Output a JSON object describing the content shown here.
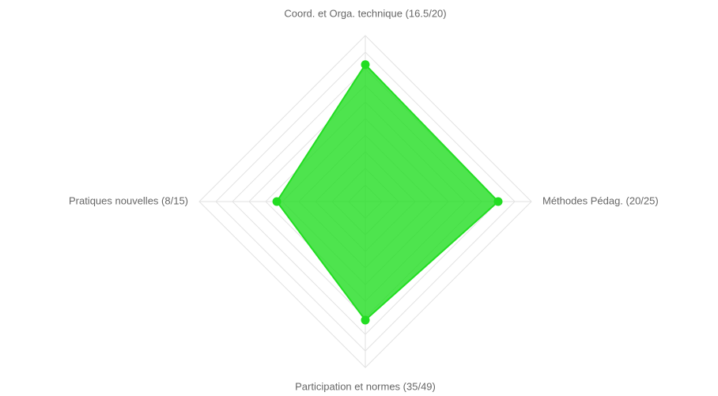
{
  "chart_data": {
    "type": "radar",
    "categories": [
      "Coord. et Orga. technique (16.5/20)",
      "Méthodes Pédag. (20/25)",
      "Participation et normes (35/49)",
      "Pratiques nouvelles (8/15)"
    ],
    "values": [
      82.5,
      80,
      71.4,
      53.3
    ],
    "color": "#22dd22",
    "rlim": [
      0,
      100
    ],
    "rticks": [
      10,
      20,
      30,
      40,
      50,
      60,
      70,
      80,
      90,
      100
    ],
    "grid": true
  }
}
